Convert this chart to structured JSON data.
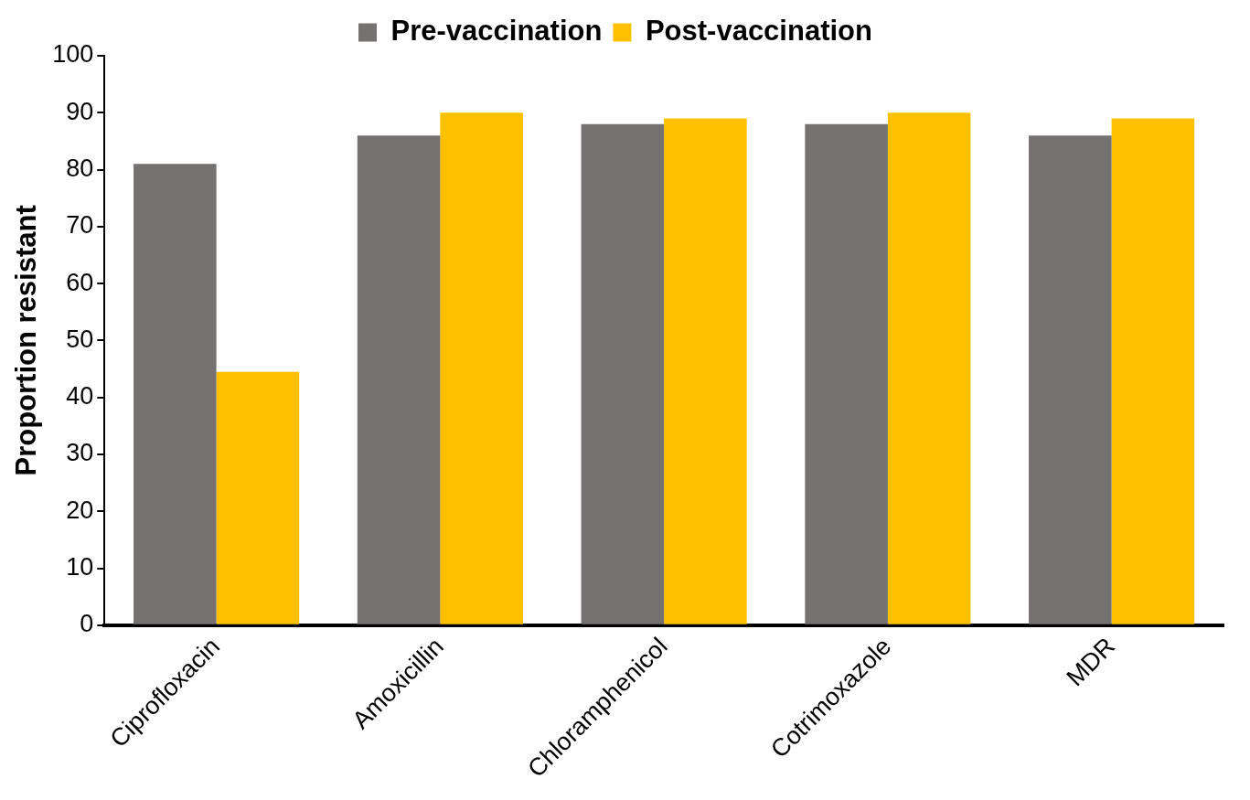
{
  "chart_data": {
    "type": "bar",
    "ylabel": "Proportion resistant",
    "categories": [
      "Ciprofloxacin",
      "Amoxicillin",
      "Chloramphenicol",
      "Cotrimoxazole",
      "MDR"
    ],
    "series": [
      {
        "name": "Pre-vaccination",
        "color": "#767171",
        "values": [
          81,
          86,
          88,
          88,
          86
        ]
      },
      {
        "name": "Post-vaccination",
        "color": "#ffc000",
        "values": [
          44.5,
          90,
          89,
          90,
          89
        ]
      }
    ],
    "ylim": [
      0,
      100
    ],
    "yticks": [
      0,
      10,
      20,
      30,
      40,
      50,
      60,
      70,
      80,
      90,
      100
    ],
    "grid": false,
    "legend": "top"
  }
}
